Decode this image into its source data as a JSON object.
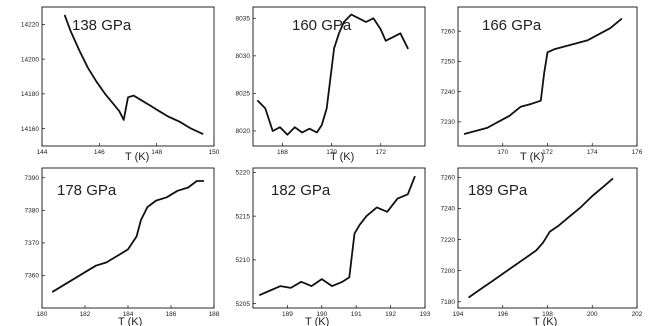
{
  "chart_data": [
    {
      "type": "line",
      "title": "138 GPa",
      "xlabel": "T (K)",
      "ylabel": "",
      "xlim": [
        144,
        150
      ],
      "ylim": [
        14150,
        14230
      ],
      "xticks": [
        144,
        146,
        148,
        150
      ],
      "yticks": [
        14160,
        14180,
        14200,
        14220
      ],
      "series": [
        {
          "x": [
            144.8,
            145.0,
            145.3,
            145.6,
            145.9,
            146.2,
            146.5,
            146.7,
            146.85,
            147.0,
            147.2,
            147.5,
            147.8,
            148.1,
            148.4,
            148.8,
            149.2,
            149.6
          ],
          "y": [
            14225,
            14216,
            14205,
            14195,
            14187,
            14180,
            14174,
            14170,
            14165,
            14178,
            14179,
            14176,
            14173,
            14170,
            14167,
            14164,
            14160,
            14157
          ]
        }
      ]
    },
    {
      "type": "line",
      "title": "160 GPa",
      "xlabel": "T (K)",
      "ylabel": "",
      "xlim": [
        166.8,
        173.8
      ],
      "ylim": [
        8018,
        8036.5
      ],
      "xticks": [
        168,
        170,
        172
      ],
      "yticks": [
        8020,
        8025,
        8030,
        8035
      ],
      "series": [
        {
          "x": [
            167.0,
            167.3,
            167.6,
            167.9,
            168.2,
            168.5,
            168.8,
            169.1,
            169.4,
            169.6,
            169.8,
            169.95,
            170.1,
            170.3,
            170.5,
            170.8,
            171.1,
            171.4,
            171.7,
            172.0,
            172.2,
            172.5,
            172.8,
            173.1
          ],
          "y": [
            8024,
            8023,
            8020,
            8020.5,
            8019.5,
            8020.5,
            8019.8,
            8020.3,
            8019.8,
            8020.8,
            8023,
            8027,
            8031,
            8033,
            8034.5,
            8035.5,
            8035,
            8034.5,
            8035,
            8033.5,
            8032,
            8032.5,
            8033,
            8031
          ]
        }
      ]
    },
    {
      "type": "line",
      "title": "166 GPa",
      "xlabel": "T (K)",
      "ylabel": "",
      "xlim": [
        168,
        176
      ],
      "ylim": [
        7222,
        7268
      ],
      "xticks": [
        170,
        172,
        174,
        176
      ],
      "yticks": [
        7230,
        7240,
        7250,
        7260
      ],
      "series": [
        {
          "x": [
            168.3,
            168.8,
            169.3,
            169.8,
            170.3,
            170.8,
            171.3,
            171.7,
            171.85,
            172.0,
            172.3,
            172.8,
            173.3,
            173.8,
            174.3,
            174.8,
            175.3
          ],
          "y": [
            7226,
            7227,
            7228,
            7230,
            7232,
            7235,
            7236,
            7237,
            7246,
            7253,
            7254,
            7255,
            7256,
            7257,
            7259,
            7261,
            7264
          ]
        }
      ]
    },
    {
      "type": "line",
      "title": "178 GPa",
      "xlabel": "T (K)",
      "ylabel": "",
      "xlim": [
        180,
        188
      ],
      "ylim": [
        7350,
        7393
      ],
      "xticks": [
        180,
        182,
        184,
        186,
        188
      ],
      "yticks": [
        7360,
        7370,
        7380,
        7390
      ],
      "series": [
        {
          "x": [
            180.5,
            181.0,
            181.5,
            182.0,
            182.5,
            183.0,
            183.5,
            184.0,
            184.4,
            184.6,
            184.9,
            185.3,
            185.8,
            186.3,
            186.8,
            187.2,
            187.5
          ],
          "y": [
            7355,
            7357,
            7359,
            7361,
            7363,
            7364,
            7366,
            7368,
            7372,
            7377,
            7381,
            7383,
            7384,
            7386,
            7387,
            7389,
            7389
          ]
        }
      ]
    },
    {
      "type": "line",
      "title": "182 GPa",
      "xlabel": "T (K)",
      "ylabel": "",
      "xlim": [
        188,
        193
      ],
      "ylim": [
        5204.5,
        5220.5
      ],
      "xticks": [
        189,
        190,
        191,
        192,
        193
      ],
      "yticks": [
        5205,
        5210,
        5215,
        5220
      ],
      "series": [
        {
          "x": [
            188.2,
            188.5,
            188.8,
            189.1,
            189.4,
            189.7,
            190.0,
            190.3,
            190.6,
            190.8,
            190.95,
            191.1,
            191.3,
            191.6,
            191.9,
            192.2,
            192.5,
            192.7
          ],
          "y": [
            5206,
            5206.5,
            5207,
            5206.8,
            5207.5,
            5207,
            5207.8,
            5207,
            5207.5,
            5208,
            5213,
            5214,
            5215,
            5216,
            5215.5,
            5217,
            5217.5,
            5219.5
          ]
        }
      ]
    },
    {
      "type": "line",
      "title": "189 GPa",
      "xlabel": "T (K)",
      "ylabel": "",
      "xlim": [
        194,
        202
      ],
      "ylim": [
        7176,
        7266
      ],
      "xticks": [
        194,
        196,
        198,
        200,
        202
      ],
      "yticks": [
        7180,
        7200,
        7220,
        7240,
        7260
      ],
      "series": [
        {
          "x": [
            194.5,
            195.0,
            195.5,
            196.0,
            196.5,
            197.0,
            197.5,
            197.8,
            198.1,
            198.5,
            199.0,
            199.5,
            200.0,
            200.5,
            200.9
          ],
          "y": [
            7183,
            7188,
            7193,
            7198,
            7203,
            7208,
            7213,
            7218,
            7225,
            7229,
            7235,
            7241,
            7248,
            7254,
            7259
          ]
        }
      ]
    }
  ]
}
